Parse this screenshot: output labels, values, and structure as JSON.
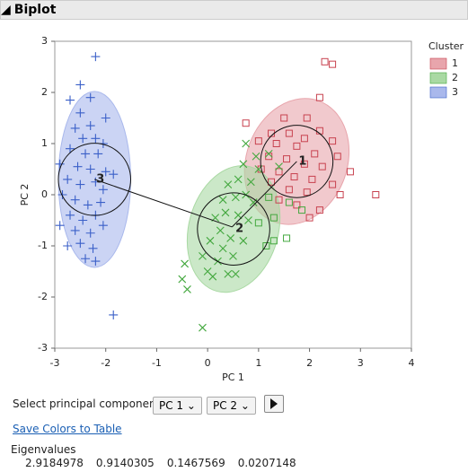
{
  "header": {
    "title": "Biplot"
  },
  "chart_data": {
    "type": "scatter",
    "x_label": "PC 1",
    "y_label": "PC 2",
    "xlim": [
      -3,
      4
    ],
    "xticks": [
      -3,
      -2,
      -1,
      0,
      1,
      2,
      3,
      4
    ],
    "ylim": [
      -3,
      3
    ],
    "yticks": [
      -3,
      -2,
      -1,
      0,
      1,
      2,
      3
    ],
    "legend_title": "Cluster",
    "legend": "right",
    "series": [
      {
        "name": "1",
        "color": "#c8424f",
        "fill": "#e8a5ac",
        "marker": "square",
        "x": [
          2.3,
          2.45,
          2.2,
          1.5,
          1.95,
          2.2,
          1.25,
          1.6,
          1.9,
          2.45,
          1.0,
          1.35,
          1.75,
          2.1,
          2.55,
          1.2,
          1.55,
          1.9,
          2.25,
          2.8,
          1.05,
          1.4,
          1.7,
          2.05,
          2.45,
          1.25,
          1.6,
          1.95,
          2.6,
          3.3,
          1.4,
          1.75,
          2.0,
          2.2,
          0.75
        ],
        "values": [
          2.6,
          2.55,
          1.9,
          1.5,
          1.5,
          1.25,
          1.2,
          1.2,
          1.1,
          1.05,
          1.05,
          1.0,
          0.95,
          0.8,
          0.75,
          0.75,
          0.7,
          0.6,
          0.55,
          0.45,
          0.5,
          0.45,
          0.35,
          0.3,
          0.2,
          0.25,
          0.1,
          0.05,
          0.0,
          0.0,
          -0.1,
          -0.2,
          -0.45,
          -0.3,
          1.4
        ],
        "center": [
          1.75,
          0.65
        ],
        "ellipse": {
          "rx": 0.99,
          "ry": 1.26,
          "angle": 20
        }
      },
      {
        "name": "2",
        "color": "#44a83f",
        "fill": "#a9d9a3",
        "marker": "x",
        "x": [
          -0.1,
          -0.4,
          -0.5,
          -0.45,
          -0.1,
          0.0,
          0.1,
          0.2,
          0.4,
          0.55,
          0.3,
          0.5,
          0.05,
          0.25,
          0.45,
          0.7,
          0.15,
          0.35,
          0.6,
          0.8,
          0.3,
          0.55,
          0.75,
          0.9,
          0.6,
          0.85,
          1.0,
          0.7,
          0.95,
          0.75,
          1.2,
          1.4,
          0.4,
          1.2,
          1.3,
          1.15,
          1.3,
          1.55,
          1.85,
          1.6,
          1.0
        ],
        "values": [
          -2.6,
          -1.85,
          -1.65,
          -1.35,
          -1.2,
          -1.5,
          -1.6,
          -1.3,
          -1.55,
          -1.55,
          -1.05,
          -1.2,
          -0.9,
          -0.7,
          -0.85,
          -0.9,
          -0.45,
          -0.35,
          -0.4,
          -0.5,
          -0.1,
          -0.05,
          0.0,
          -0.15,
          0.3,
          0.25,
          0.5,
          0.6,
          0.75,
          1.0,
          0.8,
          0.55,
          0.2,
          -0.05,
          -0.45,
          -1.0,
          -0.9,
          -0.85,
          -0.3,
          -0.15,
          -0.55
        ],
        "markers": [
          "x",
          "x",
          "x",
          "x",
          "x",
          "x",
          "x",
          "x",
          "x",
          "x",
          "x",
          "x",
          "x",
          "x",
          "x",
          "x",
          "x",
          "x",
          "x",
          "x",
          "x",
          "x",
          "x",
          "x",
          "x",
          "x",
          "x",
          "x",
          "x",
          "x",
          "x",
          "x",
          "x",
          "square",
          "square",
          "square",
          "square",
          "square",
          "square",
          "square",
          "square"
        ],
        "center": [
          0.51,
          -0.67
        ],
        "ellipse": {
          "rx": 0.88,
          "ry": 1.26,
          "angle": 15
        }
      },
      {
        "name": "3",
        "color": "#3a5fc8",
        "fill": "#a9b8ec",
        "marker": "plus",
        "x": [
          -2.2,
          -2.5,
          -2.7,
          -2.3,
          -2.5,
          -2.0,
          -2.6,
          -2.3,
          -2.45,
          -2.2,
          -2.05,
          -2.7,
          -2.4,
          -2.15,
          -2.9,
          -2.55,
          -2.3,
          -2.0,
          -1.85,
          -2.75,
          -2.5,
          -2.2,
          -2.05,
          -2.85,
          -2.6,
          -2.35,
          -2.1,
          -2.7,
          -2.45,
          -2.2,
          -2.9,
          -2.6,
          -2.3,
          -2.05,
          -2.5,
          -2.75,
          -2.25,
          -2.4,
          -2.2,
          -1.85
        ],
        "values": [
          2.7,
          2.15,
          1.85,
          1.9,
          1.6,
          1.5,
          1.3,
          1.35,
          1.1,
          1.1,
          1.0,
          0.9,
          0.8,
          0.8,
          0.6,
          0.55,
          0.5,
          0.45,
          0.4,
          0.3,
          0.2,
          0.25,
          0.1,
          0.0,
          -0.1,
          -0.2,
          -0.15,
          -0.4,
          -0.5,
          -0.4,
          -0.6,
          -0.7,
          -0.75,
          -0.6,
          -0.95,
          -1.0,
          -1.05,
          -1.25,
          -1.3,
          -2.35
        ],
        "center": [
          -2.22,
          0.3
        ],
        "ellipse": {
          "rx": 0.71,
          "ry": 1.72,
          "angle": 0
        }
      }
    ],
    "circle_radius": 0.71,
    "rays": {
      "origin": [
        0.48,
        -0.63
      ],
      "ends": [
        [
          -2.22,
          0.3
        ],
        [
          1.75,
          0.65
        ]
      ]
    }
  },
  "controls": {
    "select_label": "Select principal components",
    "select_x": "PC 1",
    "select_y": "PC 2",
    "link": "Save Colors to Table"
  },
  "eigen": {
    "title": "Eigenvalues",
    "values": [
      2.9184978,
      0.9140305,
      0.1467569,
      0.0207148
    ]
  }
}
